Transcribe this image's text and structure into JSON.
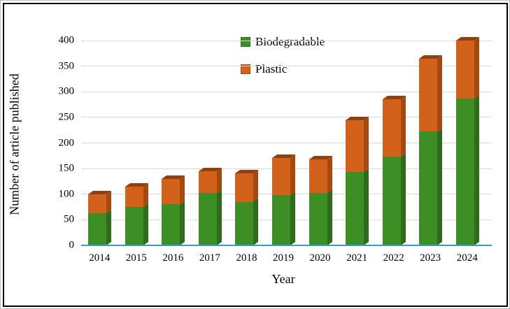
{
  "chart_data": {
    "type": "bar",
    "stacked": true,
    "title": "",
    "xlabel": "Year",
    "ylabel": "Number of article published",
    "categories": [
      "2014",
      "2015",
      "2016",
      "2017",
      "2018",
      "2019",
      "2020",
      "2021",
      "2022",
      "2023",
      "2024"
    ],
    "series": [
      {
        "name": "Biodegradable",
        "color": "#3e8e26",
        "side_color": "#2f6b1c",
        "top_color": "#275a17",
        "values": [
          63,
          75,
          80,
          103,
          85,
          98,
          103,
          144,
          173,
          222,
          287
        ]
      },
      {
        "name": "Plastic",
        "color": "#d2611c",
        "side_color": "#a4490f",
        "top_color": "#8f3f10",
        "values": [
          37,
          40,
          50,
          42,
          55,
          72,
          65,
          101,
          112,
          143,
          113
        ]
      }
    ],
    "ylim": [
      0,
      400
    ],
    "ytick_step": 50,
    "grid": true,
    "gridline_color": "#d9d9d9",
    "baseline_color": "#2e9fd4",
    "legend_position": "top-center-inside"
  }
}
